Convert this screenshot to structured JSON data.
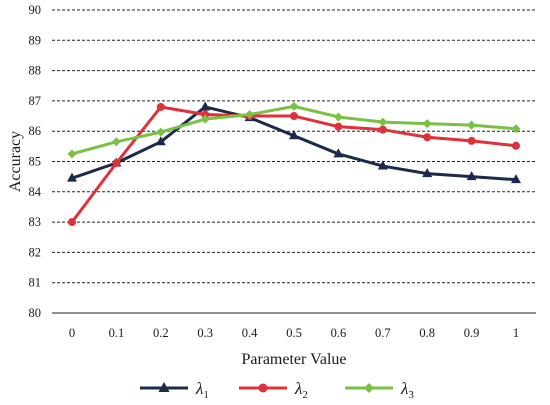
{
  "chart_data": {
    "type": "line",
    "title": "",
    "xlabel": "Parameter Value",
    "ylabel": "Accuracy",
    "x": [
      0,
      0.1,
      0.2,
      0.3,
      0.4,
      0.5,
      0.6,
      0.7,
      0.8,
      0.9,
      1
    ],
    "x_tick_labels": [
      "0",
      "0.1",
      "0.2",
      "0.3",
      "0.4",
      "0.5",
      "0.6",
      "0.7",
      "0.8",
      "0.9",
      "1"
    ],
    "ylim": [
      80,
      90
    ],
    "y_ticks": [
      80,
      81,
      82,
      83,
      84,
      85,
      86,
      87,
      88,
      89,
      90
    ],
    "grid": "horizontal dashed",
    "legend_position": "bottom",
    "series": [
      {
        "name": "λ",
        "subscript": "1",
        "color": "#1b2a4a",
        "marker": "triangle",
        "values": [
          84.45,
          84.95,
          85.65,
          86.8,
          86.45,
          85.85,
          85.25,
          84.85,
          84.6,
          84.5,
          84.4
        ]
      },
      {
        "name": "λ",
        "subscript": "2",
        "color": "#e0303a",
        "marker": "circle",
        "values": [
          83.0,
          84.95,
          86.8,
          86.55,
          86.5,
          86.5,
          86.15,
          86.05,
          85.8,
          85.68,
          85.52
        ]
      },
      {
        "name": "λ",
        "subscript": "3",
        "color": "#7ac143",
        "marker": "diamond",
        "values": [
          85.25,
          85.65,
          85.97,
          86.4,
          86.55,
          86.82,
          86.47,
          86.3,
          86.25,
          86.2,
          86.08
        ]
      }
    ]
  }
}
